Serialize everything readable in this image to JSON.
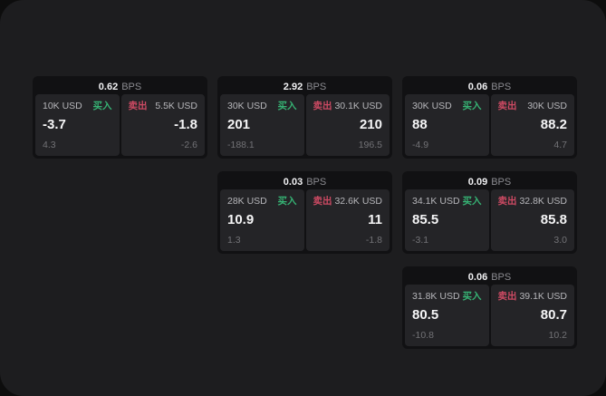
{
  "labels": {
    "buy": "买入",
    "sell": "卖出",
    "bps": "BPS"
  },
  "colors": {
    "page_bg": "#0d0d0d",
    "surface_bg": "#1d1d1f",
    "card_bg": "#111113",
    "panel_bg": "#242427",
    "buy_green": "#36b374",
    "sell_red": "#cd4a63",
    "value_white": "#f5f5f6",
    "muted_gray": "#727276",
    "label_gray": "#b6b6ba"
  },
  "cards": [
    {
      "bps": "0.62",
      "buy": {
        "amount": "10K USD",
        "value": "-3.7",
        "sub": "4.3"
      },
      "sell": {
        "amount": "5.5K USD",
        "value": "-1.8",
        "sub": "-2.6"
      }
    },
    {
      "bps": "2.92",
      "buy": {
        "amount": "30K USD",
        "value": "201",
        "sub": "-188.1"
      },
      "sell": {
        "amount": "30.1K USD",
        "value": "210",
        "sub": "196.5"
      }
    },
    {
      "bps": "0.06",
      "buy": {
        "amount": "30K USD",
        "value": "88",
        "sub": "-4.9"
      },
      "sell": {
        "amount": "30K USD",
        "value": "88.2",
        "sub": "4.7"
      }
    },
    {
      "bps": "0.03",
      "buy": {
        "amount": "28K USD",
        "value": "10.9",
        "sub": "1.3"
      },
      "sell": {
        "amount": "32.6K USD",
        "value": "11",
        "sub": "-1.8"
      }
    },
    {
      "bps": "0.09",
      "buy": {
        "amount": "34.1K USD",
        "value": "85.5",
        "sub": "-3.1"
      },
      "sell": {
        "amount": "32.8K USD",
        "value": "85.8",
        "sub": "3.0"
      }
    },
    {
      "bps": "0.06",
      "buy": {
        "amount": "31.8K USD",
        "value": "80.5",
        "sub": "-10.8"
      },
      "sell": {
        "amount": "39.1K USD",
        "value": "80.7",
        "sub": "10.2"
      }
    }
  ]
}
